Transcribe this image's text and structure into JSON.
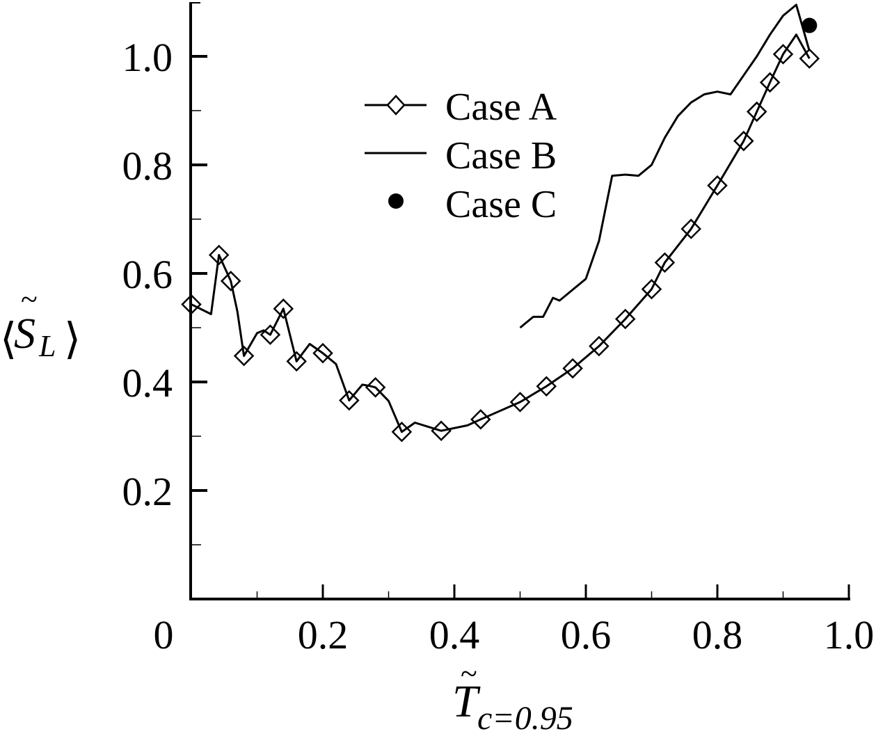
{
  "chart_data": {
    "type": "line",
    "title": "",
    "xlabel": "T̃_{c=0.95}",
    "ylabel": "⟨S̃_L⟩",
    "xlim": [
      0,
      1.0
    ],
    "ylim": [
      0,
      1.1
    ],
    "grid": false,
    "legend_position": "upper center",
    "x_ticks": [
      0,
      0.2,
      0.4,
      0.6,
      0.8,
      1.0
    ],
    "x_tick_labels": [
      "0",
      "0.2",
      "0.4",
      "0.6",
      "0.8",
      "1.0"
    ],
    "x_minor_ticks": [
      0.1,
      0.3,
      0.5,
      0.7,
      0.9
    ],
    "y_ticks": [
      0.2,
      0.4,
      0.6,
      0.8,
      1.0
    ],
    "y_tick_labels": [
      "0.2",
      "0.4",
      "0.6",
      "0.8",
      "1.0"
    ],
    "y_minor_ticks": [
      0.1,
      0.3,
      0.5,
      0.7,
      0.9
    ],
    "series": [
      {
        "name": "Case A",
        "style": "line-with-open-diamond-markers",
        "line_x": [
          0,
          0.03,
          0.042,
          0.06,
          0.07,
          0.08,
          0.1,
          0.11,
          0.12,
          0.14,
          0.16,
          0.18,
          0.2,
          0.22,
          0.24,
          0.26,
          0.27,
          0.28,
          0.3,
          0.32,
          0.34,
          0.38,
          0.42,
          0.44,
          0.5,
          0.54,
          0.58,
          0.62,
          0.66,
          0.7,
          0.72,
          0.76,
          0.8,
          0.84,
          0.86,
          0.88,
          0.9,
          0.92,
          0.94
        ],
        "line_y": [
          0.543,
          0.525,
          0.634,
          0.586,
          0.53,
          0.448,
          0.49,
          0.495,
          0.487,
          0.535,
          0.438,
          0.47,
          0.453,
          0.433,
          0.366,
          0.395,
          0.393,
          0.39,
          0.365,
          0.308,
          0.325,
          0.31,
          0.32,
          0.331,
          0.363,
          0.392,
          0.425,
          0.466,
          0.516,
          0.571,
          0.62,
          0.682,
          0.762,
          0.844,
          0.898,
          0.952,
          1.004,
          1.04,
          0.996
        ],
        "marker_x": [
          0,
          0.042,
          0.06,
          0.08,
          0.12,
          0.14,
          0.16,
          0.2,
          0.24,
          0.28,
          0.32,
          0.38,
          0.44,
          0.5,
          0.54,
          0.58,
          0.62,
          0.66,
          0.7,
          0.72,
          0.76,
          0.8,
          0.84,
          0.86,
          0.88,
          0.9,
          0.94
        ],
        "marker_y": [
          0.543,
          0.634,
          0.586,
          0.448,
          0.487,
          0.535,
          0.438,
          0.453,
          0.366,
          0.39,
          0.308,
          0.31,
          0.331,
          0.363,
          0.392,
          0.425,
          0.466,
          0.516,
          0.571,
          0.62,
          0.682,
          0.762,
          0.844,
          0.898,
          0.952,
          1.004,
          0.996
        ]
      },
      {
        "name": "Case B",
        "style": "solid-line",
        "x": [
          0.5,
          0.52,
          0.535,
          0.55,
          0.56,
          0.58,
          0.6,
          0.62,
          0.64,
          0.66,
          0.68,
          0.69,
          0.7,
          0.72,
          0.74,
          0.76,
          0.78,
          0.8,
          0.82,
          0.84,
          0.86,
          0.88,
          0.9,
          0.92,
          0.94
        ],
        "y": [
          0.5,
          0.52,
          0.52,
          0.555,
          0.55,
          0.57,
          0.59,
          0.66,
          0.78,
          0.782,
          0.78,
          0.79,
          0.8,
          0.85,
          0.89,
          0.915,
          0.93,
          0.935,
          0.93,
          0.965,
          1.0,
          1.04,
          1.075,
          1.095,
          1.01
        ]
      },
      {
        "name": "Case C",
        "style": "filled-circle-marker",
        "x": [
          0.94
        ],
        "y": [
          1.057
        ]
      }
    ]
  },
  "legend": {
    "items": [
      {
        "label": "Case A",
        "symbol": "line-diamond"
      },
      {
        "label": "Case B",
        "symbol": "line"
      },
      {
        "label": "Case C",
        "symbol": "filled-circle"
      }
    ]
  },
  "axes": {
    "x_title_main": "T",
    "x_title_sub": "c=0.95",
    "y_title_main": "S",
    "y_title_sub": "L",
    "y_title_left_bracket": "⟨",
    "y_title_right_bracket": "⟩",
    "tilde": "~"
  },
  "colors": {
    "line": "#000000",
    "background": "#ffffff"
  }
}
